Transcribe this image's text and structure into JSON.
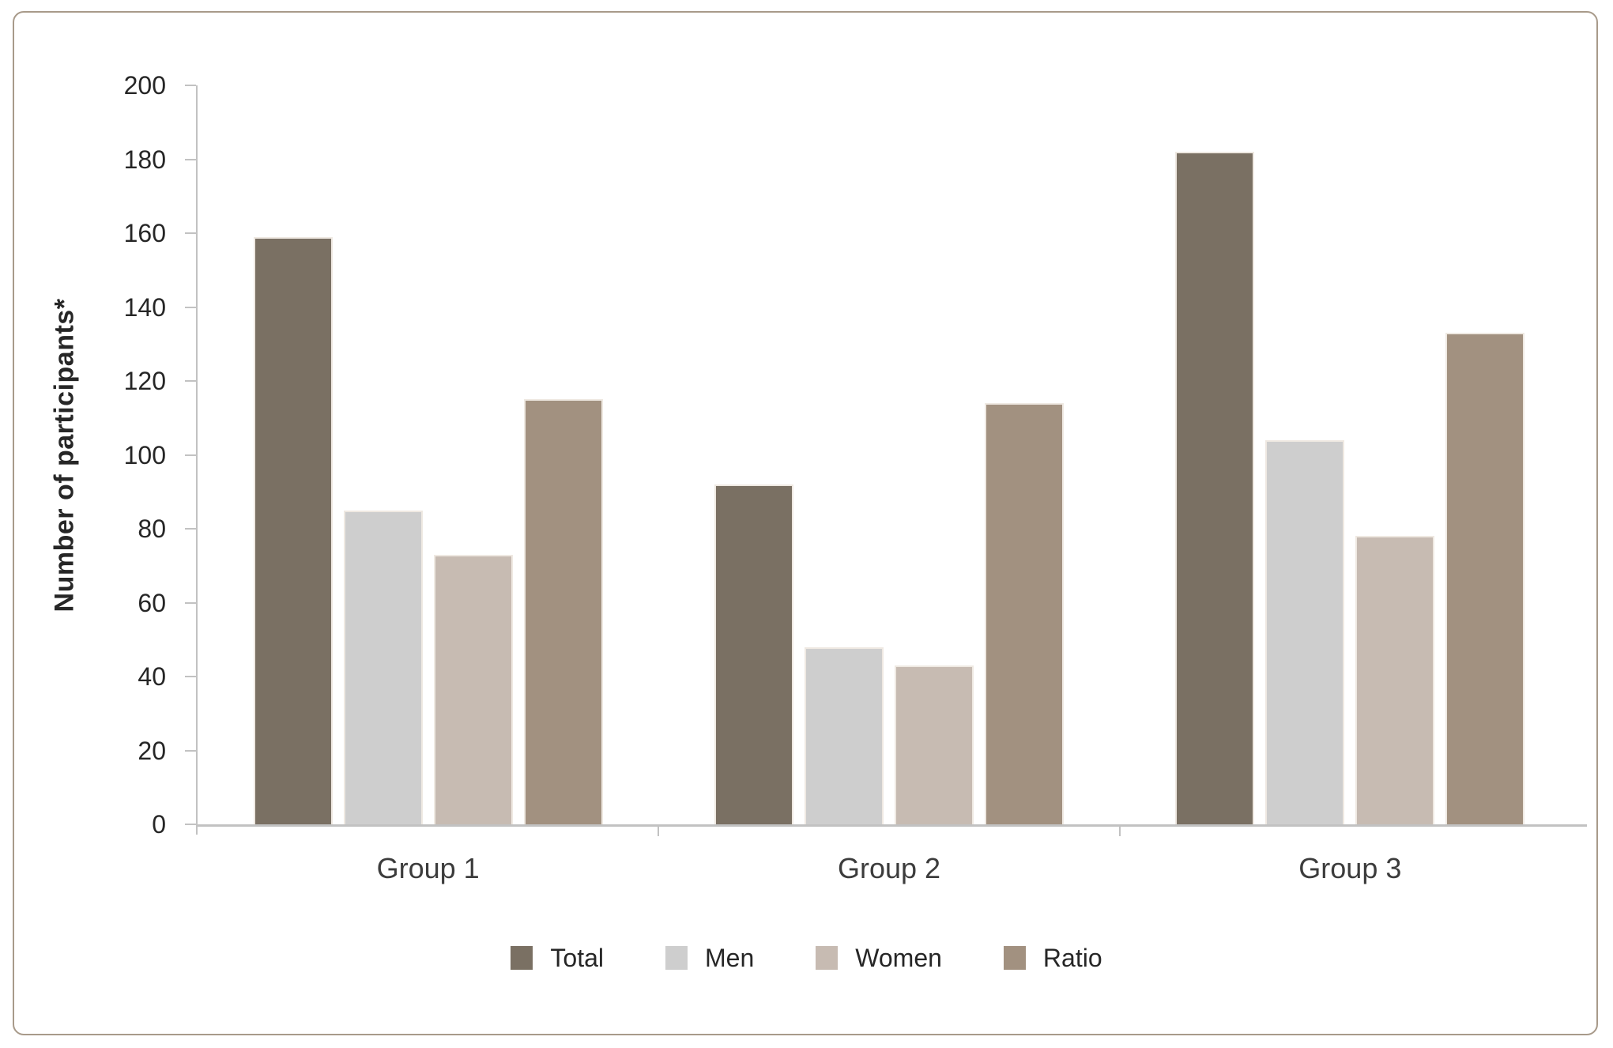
{
  "chart_data": {
    "type": "bar",
    "title": "",
    "xlabel": "",
    "ylabel": "Number of participants*",
    "ylim": [
      0,
      200
    ],
    "yticks": [
      0,
      20,
      40,
      60,
      80,
      100,
      120,
      140,
      160,
      180,
      200
    ],
    "categories": [
      "Group 1",
      "Group 2",
      "Group 3"
    ],
    "series": [
      {
        "name": "Total",
        "color": "#7a7063",
        "values": [
          159,
          92,
          182
        ]
      },
      {
        "name": "Men",
        "color": "#cecece",
        "values": [
          85,
          48,
          104
        ]
      },
      {
        "name": "Women",
        "color": "#c7bbb2",
        "values": [
          73,
          43,
          78
        ]
      },
      {
        "name": "Ratio",
        "color": "#a29180",
        "values": [
          115,
          114,
          133
        ]
      }
    ],
    "legend_position": "bottom",
    "grid": false,
    "axis_color": "#c2c2c2",
    "tick_text_color": "#262626",
    "category_label_color": "#3c3c3c",
    "card_border_color": "#a89a8a",
    "bar_outline_color": "#efe9e2"
  }
}
